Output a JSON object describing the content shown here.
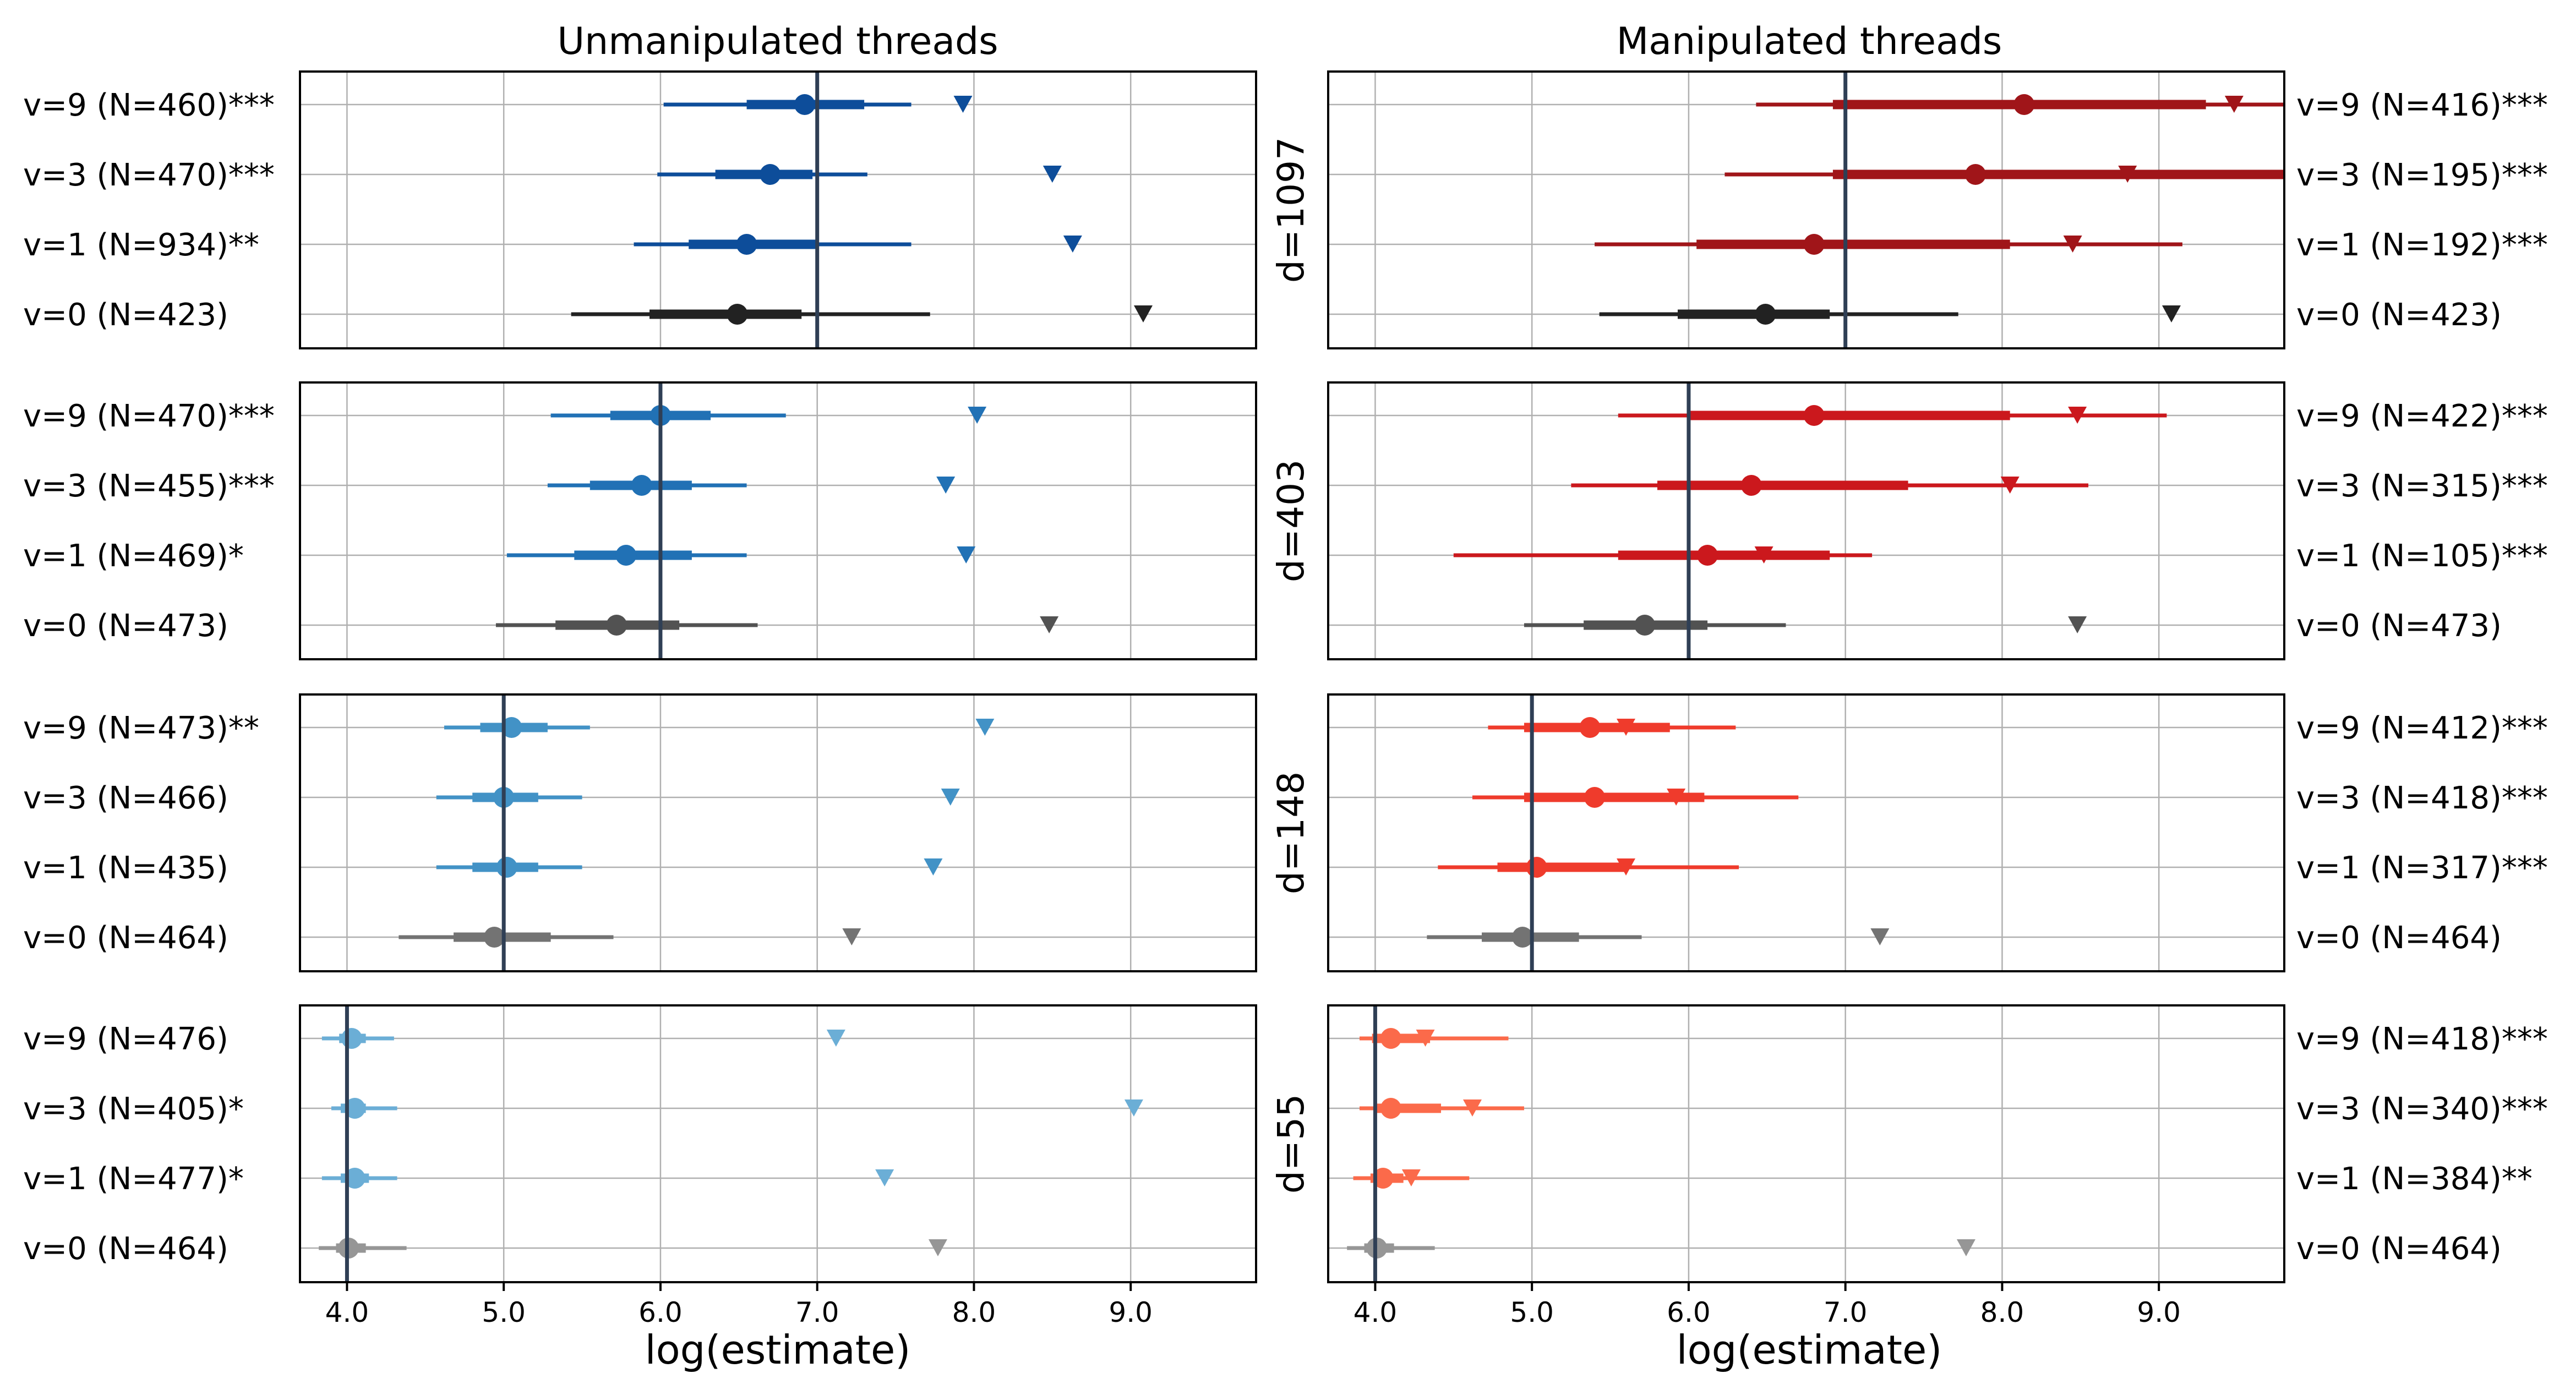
{
  "chart_data": {
    "type": "forest",
    "columns": [
      {
        "title": "Unmanipulated threads"
      },
      {
        "title": "Manipulated threads"
      }
    ],
    "xlabel": "log(estimate)",
    "xlim": [
      3.7,
      9.8
    ],
    "xticks": [
      4.0,
      5.0,
      6.0,
      7.0,
      8.0,
      9.0
    ],
    "xtick_labels": [
      "4.0",
      "5.0",
      "6.0",
      "7.0",
      "8.0",
      "9.0"
    ],
    "grid": true,
    "panels": [
      {
        "d_label": "d=1097",
        "true_value": 7.0,
        "unmanipulated": [
          {
            "label": "v=9 (N=460)***",
            "mean": 6.92,
            "ci50": [
              6.55,
              7.3
            ],
            "ci95": [
              6.02,
              7.6
            ],
            "marker": 7.93,
            "color": "#0d4d9a"
          },
          {
            "label": "v=3 (N=470)***",
            "mean": 6.7,
            "ci50": [
              6.35,
              6.97
            ],
            "ci95": [
              5.98,
              7.32
            ],
            "marker": 8.5,
            "color": "#0d4d9a"
          },
          {
            "label": "v=1 (N=934)**",
            "mean": 6.55,
            "ci50": [
              6.18,
              7.0
            ],
            "ci95": [
              5.83,
              7.6
            ],
            "marker": 8.63,
            "color": "#0d4d9a"
          },
          {
            "label": "v=0 (N=423)",
            "mean": 6.49,
            "ci50": [
              5.93,
              6.9
            ],
            "ci95": [
              5.43,
              7.72
            ],
            "marker": 9.08,
            "color": "#222222"
          }
        ],
        "manipulated": [
          {
            "label": "v=9 (N=416)***",
            "mean": 8.14,
            "ci50": [
              6.92,
              9.3
            ],
            "ci95": [
              6.43,
              9.8
            ],
            "marker": 9.48,
            "color": "#a01519"
          },
          {
            "label": "v=3 (N=195)***",
            "mean": 7.83,
            "ci50": [
              6.92,
              9.8
            ],
            "ci95": [
              6.23,
              9.8
            ],
            "marker": 8.8,
            "color": "#a01519"
          },
          {
            "label": "v=1 (N=192)***",
            "mean": 6.8,
            "ci50": [
              6.05,
              8.05
            ],
            "ci95": [
              5.4,
              9.15
            ],
            "marker": 8.45,
            "color": "#a01519"
          },
          {
            "label": "v=0 (N=423)",
            "mean": 6.49,
            "ci50": [
              5.93,
              6.9
            ],
            "ci95": [
              5.43,
              7.72
            ],
            "marker": 9.08,
            "color": "#222222"
          }
        ]
      },
      {
        "d_label": "d=403",
        "true_value": 6.0,
        "unmanipulated": [
          {
            "label": "v=9 (N=470)***",
            "mean": 6.0,
            "ci50": [
              5.68,
              6.32
            ],
            "ci95": [
              5.3,
              6.8
            ],
            "marker": 8.02,
            "color": "#2171b5"
          },
          {
            "label": "v=3 (N=455)***",
            "mean": 5.88,
            "ci50": [
              5.55,
              6.2
            ],
            "ci95": [
              5.28,
              6.55
            ],
            "marker": 7.82,
            "color": "#2171b5"
          },
          {
            "label": "v=1 (N=469)*",
            "mean": 5.78,
            "ci50": [
              5.45,
              6.2
            ],
            "ci95": [
              5.02,
              6.55
            ],
            "marker": 7.95,
            "color": "#2171b5"
          },
          {
            "label": "v=0 (N=473)",
            "mean": 5.72,
            "ci50": [
              5.33,
              6.12
            ],
            "ci95": [
              4.95,
              6.62
            ],
            "marker": 8.48,
            "color": "#525252"
          }
        ],
        "manipulated": [
          {
            "label": "v=9 (N=422)***",
            "mean": 6.8,
            "ci50": [
              6.0,
              8.05
            ],
            "ci95": [
              5.55,
              9.05
            ],
            "marker": 8.48,
            "color": "#cb181d"
          },
          {
            "label": "v=3 (N=315)***",
            "mean": 6.4,
            "ci50": [
              5.8,
              7.4
            ],
            "ci95": [
              5.25,
              8.55
            ],
            "marker": 8.05,
            "color": "#cb181d"
          },
          {
            "label": "v=1 (N=105)***",
            "mean": 6.12,
            "ci50": [
              5.55,
              6.9
            ],
            "ci95": [
              4.5,
              7.17
            ],
            "marker": 6.48,
            "color": "#cb181d"
          },
          {
            "label": "v=0 (N=473)",
            "mean": 5.72,
            "ci50": [
              5.33,
              6.12
            ],
            "ci95": [
              4.95,
              6.62
            ],
            "marker": 8.48,
            "color": "#525252"
          }
        ]
      },
      {
        "d_label": "d=148",
        "true_value": 5.0,
        "unmanipulated": [
          {
            "label": "v=9 (N=473)**",
            "mean": 5.05,
            "ci50": [
              4.85,
              5.28
            ],
            "ci95": [
              4.62,
              5.55
            ],
            "marker": 8.07,
            "color": "#4292c6"
          },
          {
            "label": "v=3 (N=466)",
            "mean": 5.0,
            "ci50": [
              4.8,
              5.22
            ],
            "ci95": [
              4.57,
              5.5
            ],
            "marker": 7.85,
            "color": "#4292c6"
          },
          {
            "label": "v=1 (N=435)",
            "mean": 5.02,
            "ci50": [
              4.8,
              5.22
            ],
            "ci95": [
              4.57,
              5.5
            ],
            "marker": 7.74,
            "color": "#4292c6"
          },
          {
            "label": "v=0 (N=464)",
            "mean": 4.94,
            "ci50": [
              4.68,
              5.3
            ],
            "ci95": [
              4.33,
              5.7
            ],
            "marker": 7.22,
            "color": "#737373"
          }
        ],
        "manipulated": [
          {
            "label": "v=9 (N=412)***",
            "mean": 5.37,
            "ci50": [
              4.95,
              5.88
            ],
            "ci95": [
              4.72,
              6.3
            ],
            "marker": 5.6,
            "color": "#ef3b2c"
          },
          {
            "label": "v=3 (N=418)***",
            "mean": 5.4,
            "ci50": [
              4.95,
              6.1
            ],
            "ci95": [
              4.62,
              6.7
            ],
            "marker": 5.92,
            "color": "#ef3b2c"
          },
          {
            "label": "v=1 (N=317)***",
            "mean": 5.03,
            "ci50": [
              4.78,
              5.6
            ],
            "ci95": [
              4.4,
              6.32
            ],
            "marker": 5.6,
            "color": "#ef3b2c"
          },
          {
            "label": "v=0 (N=464)",
            "mean": 4.94,
            "ci50": [
              4.68,
              5.3
            ],
            "ci95": [
              4.33,
              5.7
            ],
            "marker": 7.22,
            "color": "#737373"
          }
        ]
      },
      {
        "d_label": "d=55",
        "true_value": 4.0,
        "unmanipulated": [
          {
            "label": "v=9 (N=476)",
            "mean": 4.03,
            "ci50": [
              3.95,
              4.12
            ],
            "ci95": [
              3.84,
              4.3
            ],
            "marker": 7.12,
            "color": "#6baed6"
          },
          {
            "label": "v=3 (N=405)*",
            "mean": 4.05,
            "ci50": [
              3.96,
              4.12
            ],
            "ci95": [
              3.9,
              4.32
            ],
            "marker": 9.02,
            "color": "#6baed6"
          },
          {
            "label": "v=1 (N=477)*",
            "mean": 4.05,
            "ci50": [
              3.96,
              4.14
            ],
            "ci95": [
              3.84,
              4.32
            ],
            "marker": 7.43,
            "color": "#6baed6"
          },
          {
            "label": "v=0 (N=464)",
            "mean": 4.01,
            "ci50": [
              3.93,
              4.12
            ],
            "ci95": [
              3.82,
              4.38
            ],
            "marker": 7.77,
            "color": "#969696"
          }
        ],
        "manipulated": [
          {
            "label": "v=9 (N=418)***",
            "mean": 4.1,
            "ci50": [
              3.98,
              4.35
            ],
            "ci95": [
              3.9,
              4.85
            ],
            "marker": 4.32,
            "color": "#fb6a4a"
          },
          {
            "label": "v=3 (N=340)***",
            "mean": 4.1,
            "ci50": [
              4.0,
              4.42
            ],
            "ci95": [
              3.9,
              4.95
            ],
            "marker": 4.62,
            "color": "#fb6a4a"
          },
          {
            "label": "v=1 (N=384)**",
            "mean": 4.05,
            "ci50": [
              3.97,
              4.18
            ],
            "ci95": [
              3.86,
              4.6
            ],
            "marker": 4.23,
            "color": "#fb6a4a"
          },
          {
            "label": "v=0 (N=464)",
            "mean": 4.01,
            "ci50": [
              3.93,
              4.12
            ],
            "ci95": [
              3.82,
              4.38
            ],
            "marker": 7.77,
            "color": "#969696"
          }
        ]
      }
    ]
  }
}
